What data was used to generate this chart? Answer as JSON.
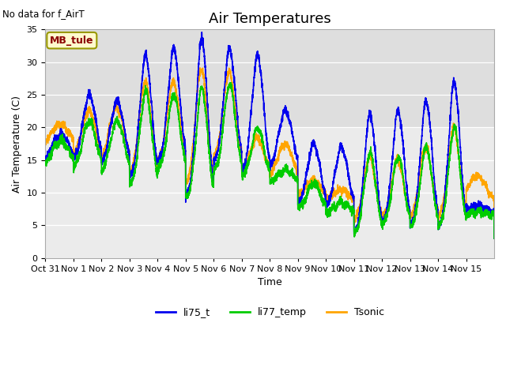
{
  "title": "Air Temperatures",
  "xlabel": "Time",
  "ylabel": "Air Temperature (C)",
  "top_left_text": "No data for f_AirT",
  "box_label": "MB_tule",
  "box_label_color": "#8B0000",
  "box_bg_color": "#FFFACD",
  "box_border_color": "#999900",
  "ylim": [
    0,
    35
  ],
  "yticks": [
    0,
    5,
    10,
    15,
    20,
    25,
    30,
    35
  ],
  "xtick_labels": [
    "Oct 31",
    "Nov 1",
    "Nov 2",
    "Nov 3",
    "Nov 4",
    "Nov 5",
    "Nov 6",
    "Nov 7",
    "Nov 8",
    "Nov 9",
    "Nov 10",
    "Nov 11",
    "Nov 12",
    "Nov 13",
    "Nov 14",
    "Nov 15"
  ],
  "line_colors": {
    "li75_t": "#0000EE",
    "li77_temp": "#00CC00",
    "Tsonic": "#FFA500"
  },
  "legend_labels": [
    "li75_t",
    "li77_temp",
    "Tsonic"
  ],
  "fig_bg_color": "#FFFFFF",
  "plot_bg_color": "#EBEBEB",
  "grid_color": "#FFFFFF",
  "title_fontsize": 13,
  "label_fontsize": 9,
  "tick_fontsize": 8,
  "linewidth": 1.2
}
